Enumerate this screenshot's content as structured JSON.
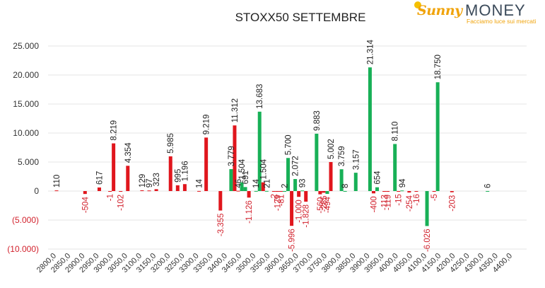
{
  "logo": {
    "brand_sunny": "Sunny",
    "brand_money": "MONEY",
    "tagline": "Facciamo luce sui mercati"
  },
  "colors": {
    "positive": "#18b057",
    "negative": "#e0161d",
    "negative_label": "#d2222d",
    "gridline": "#e6e6e6"
  },
  "chart_data": {
    "type": "bar",
    "title": "STOXX50 SETTEMBRE",
    "xlabel": "",
    "ylabel": "",
    "ylim": [
      -10000,
      25000
    ],
    "yticks": [
      25000,
      20000,
      15000,
      10000,
      5000,
      0,
      -5000,
      -10000
    ],
    "ytick_labels": [
      "25.000",
      "20.000",
      "15.000",
      "10.000",
      "5.000",
      "0",
      "(5.000)",
      "(10.000)"
    ],
    "grid": true,
    "categories": [
      "2800,0",
      "2850,0",
      "2900,0",
      "2950,0",
      "3000,0",
      "3050,0",
      "3100,0",
      "3150,0",
      "3200,0",
      "3250,0",
      "3300,0",
      "3350,0",
      "3400,0",
      "3450,0",
      "3500,0",
      "3550,0",
      "3600,0",
      "3650,0",
      "3700,0",
      "3750,0",
      "3800,0",
      "3850,0",
      "3900,0",
      "3950,0",
      "4000,0",
      "4050,0",
      "4100,0",
      "4150,0",
      "4200,0",
      "4250,0",
      "4300,0",
      "4350,0",
      "4400,0"
    ],
    "bars": [
      {
        "x": 2800,
        "value": 110,
        "color": "red",
        "label": "110"
      },
      {
        "x": 2900,
        "value": -504,
        "color": "red",
        "label": "-504"
      },
      {
        "x": 2950,
        "value": 617,
        "color": "red",
        "label": "617"
      },
      {
        "x": 2987.5,
        "value": -1,
        "color": "red",
        "label": "-1"
      },
      {
        "x": 3000,
        "value": 8219,
        "color": "red",
        "label": "8.219"
      },
      {
        "x": 3025,
        "value": -102,
        "color": "red",
        "label": "-102"
      },
      {
        "x": 3050,
        "value": 4354,
        "color": "red",
        "label": "4.354"
      },
      {
        "x": 3100,
        "value": 129,
        "color": "red",
        "label": "129"
      },
      {
        "x": 3125,
        "value": 97,
        "color": "red",
        "label": "97"
      },
      {
        "x": 3150,
        "value": 323,
        "color": "red",
        "label": "323"
      },
      {
        "x": 3200,
        "value": 5985,
        "color": "red",
        "label": "5.985"
      },
      {
        "x": 3225,
        "value": 995,
        "color": "red",
        "label": "995"
      },
      {
        "x": 3250,
        "value": 1196,
        "color": "red",
        "label": "1.196"
      },
      {
        "x": 3300,
        "value": 14,
        "color": "red",
        "label": "14"
      },
      {
        "x": 3325,
        "value": 9219,
        "color": "red",
        "label": "9.219"
      },
      {
        "x": 3375,
        "value": -3355,
        "color": "red",
        "label": "-3.355"
      },
      {
        "x": 3412.5,
        "value": 3779,
        "color": "green",
        "label": "3.779"
      },
      {
        "x": 3425,
        "value": 11312,
        "color": "red",
        "label": "11.312"
      },
      {
        "x": 3437.5,
        "value": 46,
        "color": "red",
        "label": "46"
      },
      {
        "x": 3450,
        "value": 1504,
        "color": "green",
        "label": "1.504"
      },
      {
        "x": 3462.5,
        "value": 691,
        "color": "green",
        "label": "691"
      },
      {
        "x": 3475,
        "value": -1126,
        "color": "red",
        "label": "-1.126"
      },
      {
        "x": 3500,
        "value": 14,
        "color": "green",
        "label": "14"
      },
      {
        "x": 3512.5,
        "value": 13683,
        "color": "green",
        "label": "13.683"
      },
      {
        "x": 3525,
        "value": 1504,
        "color": "red",
        "label": "1.504"
      },
      {
        "x": 3537.5,
        "value": 21,
        "color": "green",
        "label": "21"
      },
      {
        "x": 3562.5,
        "value": -2,
        "color": "red",
        "label": "-2"
      },
      {
        "x": 3575,
        "value": -129,
        "color": "red",
        "label": "-129"
      },
      {
        "x": 3587.5,
        "value": -81,
        "color": "red",
        "label": "-81"
      },
      {
        "x": 3600,
        "value": 2,
        "color": "green",
        "label": "2"
      },
      {
        "x": 3612.5,
        "value": 5700,
        "color": "green",
        "label": "5.700"
      },
      {
        "x": 3625,
        "value": -5996,
        "color": "red",
        "label": "-5.996"
      },
      {
        "x": 3637.5,
        "value": 2072,
        "color": "green",
        "label": "2.072"
      },
      {
        "x": 3650,
        "value": -1000,
        "color": "red",
        "label": "-1.000"
      },
      {
        "x": 3662.5,
        "value": 93,
        "color": "green",
        "label": "93"
      },
      {
        "x": 3675,
        "value": -1828,
        "color": "red",
        "label": "-1.828"
      },
      {
        "x": 3712.5,
        "value": 9883,
        "color": "green",
        "label": "9.883"
      },
      {
        "x": 3725,
        "value": -560,
        "color": "red",
        "label": "-560"
      },
      {
        "x": 3737.5,
        "value": -285,
        "color": "red",
        "label": "-285"
      },
      {
        "x": 3750,
        "value": -494,
        "color": "green",
        "label": "-494"
      },
      {
        "x": 3762.5,
        "value": 5002,
        "color": "red",
        "label": "5.002"
      },
      {
        "x": 3800,
        "value": 3759,
        "color": "green",
        "label": "3.759"
      },
      {
        "x": 3812.5,
        "value": 8,
        "color": "green",
        "label": "8"
      },
      {
        "x": 3850,
        "value": 3157,
        "color": "green",
        "label": "3.157"
      },
      {
        "x": 3900,
        "value": 21314,
        "color": "green",
        "label": "21.314"
      },
      {
        "x": 3912.5,
        "value": -400,
        "color": "red",
        "label": "-400"
      },
      {
        "x": 3925,
        "value": 654,
        "color": "green",
        "label": "654"
      },
      {
        "x": 3950,
        "value": -113,
        "color": "red",
        "label": "-113"
      },
      {
        "x": 3962.5,
        "value": -119,
        "color": "red",
        "label": "-119"
      },
      {
        "x": 3987.5,
        "value": 8110,
        "color": "green",
        "label": "8.110"
      },
      {
        "x": 4000,
        "value": -15,
        "color": "red",
        "label": "-15"
      },
      {
        "x": 4012.5,
        "value": 94,
        "color": "green",
        "label": "94"
      },
      {
        "x": 4037.5,
        "value": -254,
        "color": "red",
        "label": "-254"
      },
      {
        "x": 4062.5,
        "value": -16,
        "color": "red",
        "label": "-16"
      },
      {
        "x": 4100,
        "value": -6026,
        "color": "green",
        "label": "-6.026"
      },
      {
        "x": 4125,
        "value": -5,
        "color": "red",
        "label": "-5"
      },
      {
        "x": 4137.5,
        "value": 18750,
        "color": "green",
        "label": "18.750"
      },
      {
        "x": 4187.5,
        "value": -203,
        "color": "red",
        "label": "-203"
      },
      {
        "x": 4312.5,
        "value": 6,
        "color": "green",
        "label": "6"
      }
    ]
  }
}
